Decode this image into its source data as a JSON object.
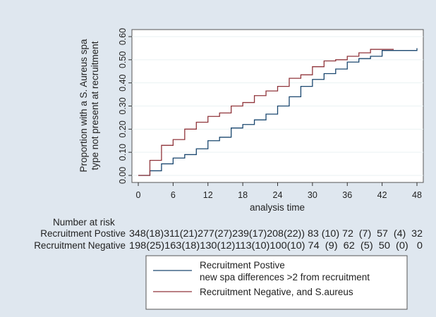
{
  "chart_data": {
    "type": "line",
    "subtype": "step",
    "xlabel": "analysis time",
    "ylabel_lines": [
      "Proportion with a S. Aureus spa",
      "type not present at recruitment"
    ],
    "xlim": [
      0,
      48
    ],
    "ylim": [
      0,
      0.6
    ],
    "x_ticks": [
      0,
      6,
      12,
      18,
      24,
      30,
      36,
      42,
      48
    ],
    "y_ticks": [
      0.0,
      0.1,
      0.2,
      0.3,
      0.4,
      0.5,
      0.6
    ],
    "y_tick_labels": [
      "0.00",
      "0.10",
      "0.20",
      "0.30",
      "0.40",
      "0.50",
      "0.60"
    ],
    "series": [
      {
        "name": "Recruitment Postive",
        "color": "#1a476f",
        "x": [
          0,
          2,
          4,
          6,
          8,
          10,
          12,
          14,
          16,
          18,
          20,
          22,
          24,
          26,
          28,
          30,
          32,
          34,
          36,
          38,
          40,
          42,
          48
        ],
        "y": [
          0.0,
          0.02,
          0.05,
          0.075,
          0.09,
          0.115,
          0.15,
          0.165,
          0.205,
          0.22,
          0.24,
          0.265,
          0.3,
          0.34,
          0.385,
          0.415,
          0.44,
          0.46,
          0.49,
          0.505,
          0.515,
          0.54,
          0.55
        ]
      },
      {
        "name": "Recruitment Negative",
        "color": "#90353b",
        "x": [
          0,
          2,
          4,
          6,
          8,
          10,
          12,
          14,
          16,
          18,
          20,
          22,
          24,
          26,
          28,
          30,
          32,
          34,
          36,
          38,
          40,
          44
        ],
        "y": [
          0.0,
          0.065,
          0.13,
          0.155,
          0.2,
          0.23,
          0.255,
          0.27,
          0.3,
          0.315,
          0.345,
          0.365,
          0.385,
          0.42,
          0.435,
          0.47,
          0.495,
          0.5,
          0.515,
          0.53,
          0.545,
          0.545
        ]
      }
    ],
    "risk_table": {
      "title": "Number at risk",
      "rows": [
        {
          "label": "Recruitment Postive",
          "text": "348(18)311(21)277(27)239(17)208(22)) 83 (10) 72  (7)  57  (4)  32"
        },
        {
          "label": "Recruitment Negative",
          "text": "198(25)163(18)130(12)113(10)100(10) 74  (9)  62  (5)  50  (0)   0"
        }
      ]
    },
    "legend": {
      "placement": "bottom-right",
      "entries": [
        {
          "line1": "Recruitment Postive",
          "line2": "new spa differences >2 from recruitment"
        },
        {
          "line1": "Recruitment Negative, and S.aureus"
        }
      ]
    }
  }
}
